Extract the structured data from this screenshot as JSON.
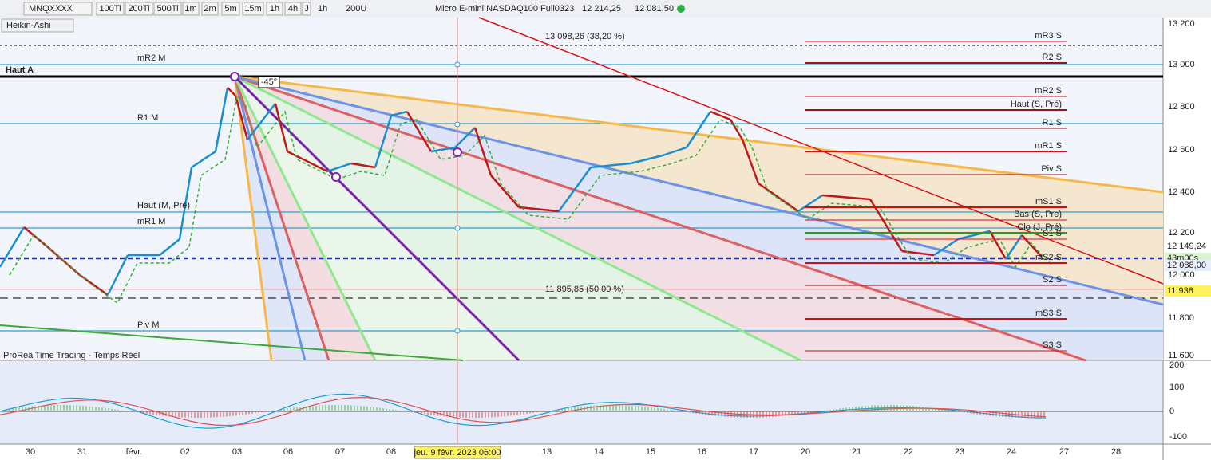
{
  "toolbar": {
    "symbol": "MNQXXXX",
    "buttons": [
      "100Ti",
      "200Ti",
      "500Ti",
      "1m",
      "2m",
      "5m",
      "15m",
      "1h",
      "4h",
      "J"
    ],
    "timeframe": "1h",
    "units": "200U",
    "instrument": "Micro E-mini NASDAQ100 Full0323",
    "high": "12 214,25",
    "low": "12 081,50"
  },
  "chart_style": "Heikin-Ashi",
  "top_level": "Haut A",
  "left_levels": [
    "mR2 M",
    "R1 M",
    "Haut (M, Pré)",
    "mR1 M",
    "Piv M"
  ],
  "right_levels": [
    "mR3 S",
    "R2 S",
    "mR2 S",
    "Haut (S, Pré)",
    "R1 S",
    "mR1 S",
    "Piv S",
    "mS1 S",
    "Bas (S, Pre)",
    "Clo (J, Pré)",
    "S1 S",
    "mS2 S",
    "S2 S",
    "mS3 S",
    "S3 S"
  ],
  "fib_labels": [
    "13 098,26 (38,20 %)",
    "11 895,85 (50,00 %)"
  ],
  "angle_label": "-45°",
  "source": "ProRealTime Trading - Temps Réel",
  "price_axis": [
    "13 200",
    "13 000",
    "12 800",
    "12 600",
    "12 400",
    "12 200",
    "12 000",
    "11 800",
    "11 600"
  ],
  "indicator_axis": [
    "200",
    "100",
    "0",
    "-100"
  ],
  "price_tags": [
    "12 149,24",
    "43m00s",
    "12 088,00",
    "11 938"
  ],
  "time_axis": [
    "30",
    "31",
    "févr.",
    "02",
    "03",
    "06",
    "07",
    "08",
    "13",
    "14",
    "15",
    "16",
    "17",
    "20",
    "21",
    "22",
    "23",
    "24",
    "27",
    "28"
  ],
  "cursor_date": "jeu. 9 févr. 2023 06:00"
}
